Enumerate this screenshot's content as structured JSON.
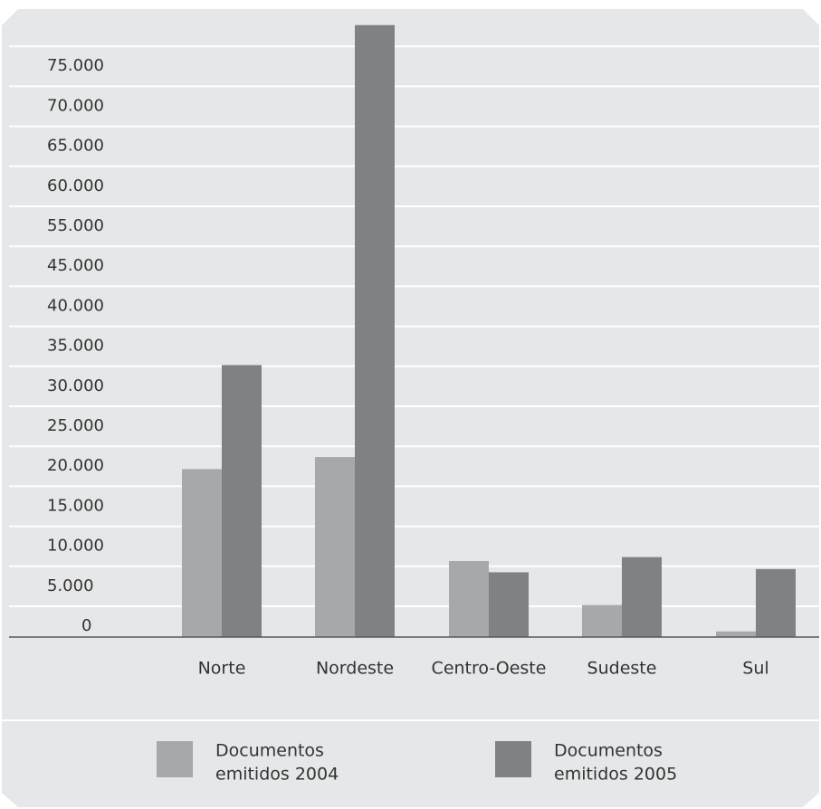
{
  "chart_data": {
    "type": "bar",
    "title": "",
    "xlabel": "",
    "ylabel": "",
    "categories": [
      "Norte",
      "Nordeste",
      "Centro-Oeste",
      "Sudeste",
      "Sul"
    ],
    "y_tick_labels": [
      "0",
      "5.000",
      "10.000",
      "15.000",
      "20.000",
      "25.000",
      "30.000",
      "35.000",
      "40.000",
      "45.000",
      "55.000",
      "60.000",
      "65.000",
      "70.000",
      "75.000"
    ],
    "ylim": [
      0,
      75000
    ],
    "grid": true,
    "legend_position": "bottom",
    "series": [
      {
        "name_lines": [
          "Documentos",
          "emitidos 2004"
        ],
        "name": "Documentos emitidos 2004",
        "color": "#a7a8ab",
        "values": [
          21000,
          22500,
          9500,
          4000,
          700
        ]
      },
      {
        "name_lines": [
          "Documentos",
          "emitidos 2005"
        ],
        "name": "Documentos emitidos 2005",
        "color": "#808184",
        "values": [
          34000,
          76500,
          8100,
          10000,
          8500
        ]
      }
    ],
    "colors": {
      "panel": "#e6e7e8",
      "gridline": "#ffffff",
      "axis": "#58595b",
      "text": "#333333"
    }
  }
}
